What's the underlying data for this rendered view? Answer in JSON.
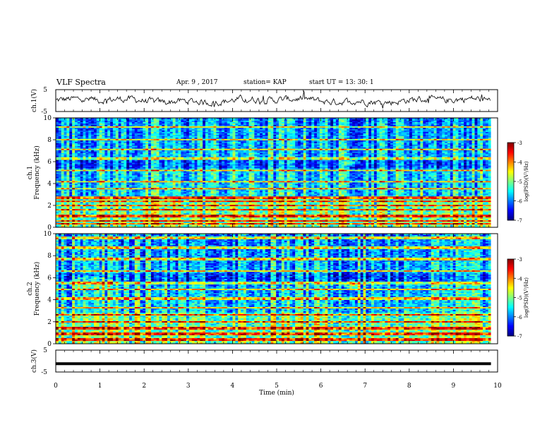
{
  "header": {
    "title": "VLF Spectra",
    "date": "Apr. 9 , 2017",
    "station": "station= KAP",
    "start_ut": "start UT = 13: 30: 1"
  },
  "chart_data": [
    {
      "type": "line",
      "panel": "ch1-waveform",
      "ylabel": "ch.1(V)",
      "ylim": [
        -5,
        5
      ],
      "yticks": [
        "5",
        "-5"
      ],
      "xlim": [
        0,
        10
      ],
      "color": "#000000"
    },
    {
      "type": "heatmap",
      "panel": "ch1-spectrogram",
      "ylabel": "ch.1 Frequency (kHz)",
      "ylim": [
        0,
        10
      ],
      "yticks": [
        "10",
        "8",
        "6",
        "4",
        "2",
        "0"
      ],
      "xlim": [
        0,
        10
      ],
      "colorbar": {
        "label": "log(PSD)(V²/Hz)",
        "range": [
          -7,
          -3
        ],
        "ticks": [
          "-3",
          "-4",
          "-5",
          "-6",
          "-7"
        ]
      }
    },
    {
      "type": "heatmap",
      "panel": "ch2-spectrogram",
      "ylabel": "ch.2 Frequency (kHz)",
      "ylim": [
        0,
        10
      ],
      "yticks": [
        "10",
        "8",
        "6",
        "4",
        "2",
        "0"
      ],
      "xlim": [
        0,
        10
      ],
      "colorbar": {
        "label": "log(PSD)(V²/Hz)",
        "range": [
          -7,
          -3
        ],
        "ticks": [
          "-3",
          "-4",
          "-5",
          "-6",
          "-7"
        ]
      }
    },
    {
      "type": "line",
      "panel": "ch3-waveform",
      "ylabel": "ch.3(V)",
      "ylim": [
        -5,
        5
      ],
      "yticks": [
        "5",
        "-5"
      ],
      "xlim": [
        0,
        10
      ],
      "color": "#000000",
      "level": -1.2
    }
  ],
  "x_axis": {
    "label": "Time (min)",
    "ticks": [
      "0",
      "1",
      "2",
      "3",
      "4",
      "5",
      "6",
      "7",
      "8",
      "9",
      "10"
    ],
    "range": [
      0,
      10
    ]
  },
  "data_end_min": 9.85
}
